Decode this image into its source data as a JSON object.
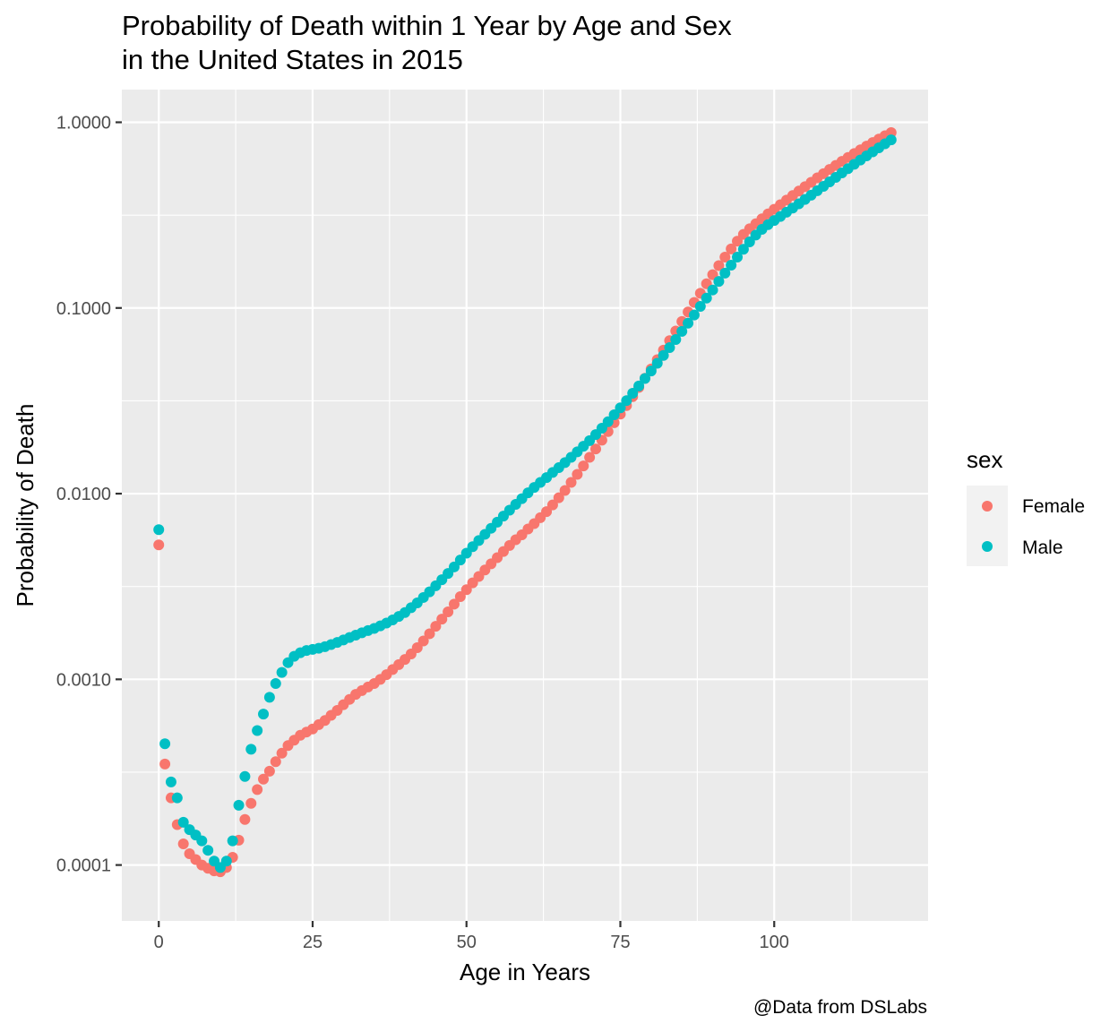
{
  "chart_data": {
    "type": "scatter",
    "title_lines": [
      "Probability of Death within 1 Year by Age and Sex",
      "in the United States in 2015"
    ],
    "xlabel": "Age in Years",
    "ylabel": "Probability of Death",
    "caption": "@Data from DSLabs",
    "x_scale": "linear",
    "y_scale": "log10",
    "xlim": [
      -6,
      125
    ],
    "ylim": [
      5e-05,
      1.5
    ],
    "x_ticks": [
      {
        "value": 0,
        "label": "0"
      },
      {
        "value": 25,
        "label": "25"
      },
      {
        "value": 50,
        "label": "50"
      },
      {
        "value": 75,
        "label": "75"
      },
      {
        "value": 100,
        "label": "100"
      }
    ],
    "y_ticks": [
      {
        "value": 0.0001,
        "label": "0.0001"
      },
      {
        "value": 0.001,
        "label": "0.0010"
      },
      {
        "value": 0.01,
        "label": "0.0100"
      },
      {
        "value": 0.1,
        "label": "0.1000"
      },
      {
        "value": 1,
        "label": "1.0000"
      }
    ],
    "legend": {
      "title": "sex",
      "placement": "right",
      "items": [
        {
          "label": "Female",
          "color": "#F8766D"
        },
        {
          "label": "Male",
          "color": "#00BFC4"
        }
      ]
    },
    "panel_background": "#EBEBEB",
    "grid_color": "#FFFFFF",
    "series": [
      {
        "name": "Female",
        "color": "#F8766D",
        "x": [
          0,
          1,
          2,
          3,
          4,
          5,
          6,
          7,
          8,
          9,
          10,
          11,
          12,
          13,
          14,
          15,
          16,
          17,
          18,
          19,
          20,
          21,
          22,
          23,
          24,
          25,
          26,
          27,
          28,
          29,
          30,
          31,
          32,
          33,
          34,
          35,
          36,
          37,
          38,
          39,
          40,
          41,
          42,
          43,
          44,
          45,
          46,
          47,
          48,
          49,
          50,
          51,
          52,
          53,
          54,
          55,
          56,
          57,
          58,
          59,
          60,
          61,
          62,
          63,
          64,
          65,
          66,
          67,
          68,
          69,
          70,
          71,
          72,
          73,
          74,
          75,
          76,
          77,
          78,
          79,
          80,
          81,
          82,
          83,
          84,
          85,
          86,
          87,
          88,
          89,
          90,
          91,
          92,
          93,
          94,
          95,
          96,
          97,
          98,
          99,
          100,
          101,
          102,
          103,
          104,
          105,
          106,
          107,
          108,
          109,
          110,
          111,
          112,
          113,
          114,
          115,
          116,
          117,
          118,
          119
        ],
        "y": [
          0.0053,
          0.00035,
          0.00023,
          0.000165,
          0.00013,
          0.000115,
          0.000107,
          0.0001,
          9.6e-05,
          9.3e-05,
          9.2e-05,
          9.7e-05,
          0.00011,
          0.000136,
          0.000176,
          0.000215,
          0.000255,
          0.00029,
          0.00032,
          0.00036,
          0.0004,
          0.00044,
          0.00047,
          0.0005,
          0.00052,
          0.00054,
          0.00057,
          0.0006,
          0.00064,
          0.00068,
          0.00073,
          0.00078,
          0.00083,
          0.00087,
          0.00091,
          0.00095,
          0.001,
          0.00106,
          0.00113,
          0.0012,
          0.00128,
          0.00137,
          0.00148,
          0.00161,
          0.00176,
          0.00193,
          0.00211,
          0.00231,
          0.00254,
          0.00279,
          0.00304,
          0.00331,
          0.00358,
          0.00388,
          0.00419,
          0.00452,
          0.00488,
          0.00526,
          0.00565,
          0.006,
          0.00645,
          0.0069,
          0.00742,
          0.008,
          0.0087,
          0.0095,
          0.0104,
          0.0115,
          0.0127,
          0.0141,
          0.0157,
          0.0174,
          0.0194,
          0.0216,
          0.0241,
          0.0268,
          0.0298,
          0.0333,
          0.0373,
          0.0418,
          0.0469,
          0.0527,
          0.0593,
          0.0667,
          0.0751,
          0.0846,
          0.0952,
          0.107,
          0.12,
          0.135,
          0.151,
          0.169,
          0.188,
          0.208,
          0.229,
          0.249,
          0.267,
          0.284,
          0.302,
          0.321,
          0.34,
          0.36,
          0.381,
          0.403,
          0.426,
          0.45,
          0.475,
          0.502,
          0.529,
          0.557,
          0.586,
          0.616,
          0.647,
          0.679,
          0.711,
          0.744,
          0.778,
          0.812,
          0.846,
          0.88
        ]
      },
      {
        "name": "Male",
        "color": "#00BFC4",
        "x": [
          0,
          1,
          2,
          3,
          4,
          5,
          6,
          7,
          8,
          9,
          10,
          11,
          12,
          13,
          14,
          15,
          16,
          17,
          18,
          19,
          20,
          21,
          22,
          23,
          24,
          25,
          26,
          27,
          28,
          29,
          30,
          31,
          32,
          33,
          34,
          35,
          36,
          37,
          38,
          39,
          40,
          41,
          42,
          43,
          44,
          45,
          46,
          47,
          48,
          49,
          50,
          51,
          52,
          53,
          54,
          55,
          56,
          57,
          58,
          59,
          60,
          61,
          62,
          63,
          64,
          65,
          66,
          67,
          68,
          69,
          70,
          71,
          72,
          73,
          74,
          75,
          76,
          77,
          78,
          79,
          80,
          81,
          82,
          83,
          84,
          85,
          86,
          87,
          88,
          89,
          90,
          91,
          92,
          93,
          94,
          95,
          96,
          97,
          98,
          99,
          100,
          101,
          102,
          103,
          104,
          105,
          106,
          107,
          108,
          109,
          110,
          111,
          112,
          113,
          114,
          115,
          116,
          117,
          118,
          119
        ],
        "y": [
          0.0064,
          0.00045,
          0.00028,
          0.00023,
          0.00017,
          0.000155,
          0.000145,
          0.000135,
          0.00012,
          0.000105,
          9.7e-05,
          0.000105,
          0.000135,
          0.00021,
          0.0003,
          0.00042,
          0.00053,
          0.00065,
          0.0008,
          0.00095,
          0.00109,
          0.00123,
          0.00133,
          0.00139,
          0.00143,
          0.00145,
          0.00147,
          0.0015,
          0.00154,
          0.00158,
          0.00163,
          0.00168,
          0.00173,
          0.00178,
          0.00183,
          0.00188,
          0.00194,
          0.00201,
          0.00209,
          0.00218,
          0.00229,
          0.00243,
          0.00258,
          0.00276,
          0.00296,
          0.00319,
          0.00344,
          0.00372,
          0.00403,
          0.00439,
          0.00478,
          0.00518,
          0.00559,
          0.00604,
          0.00651,
          0.00702,
          0.00757,
          0.00815,
          0.00876,
          0.0094,
          0.0101,
          0.0108,
          0.0115,
          0.0122,
          0.013,
          0.0138,
          0.0147,
          0.0157,
          0.0168,
          0.018,
          0.0193,
          0.0208,
          0.0225,
          0.0244,
          0.0266,
          0.029,
          0.0317,
          0.0347,
          0.038,
          0.0417,
          0.0458,
          0.0504,
          0.0555,
          0.0612,
          0.0676,
          0.0748,
          0.0828,
          0.0917,
          0.102,
          0.113,
          0.125,
          0.139,
          0.154,
          0.17,
          0.188,
          0.207,
          0.227,
          0.247,
          0.265,
          0.281,
          0.296,
          0.311,
          0.328,
          0.345,
          0.364,
          0.384,
          0.405,
          0.428,
          0.452,
          0.478,
          0.505,
          0.534,
          0.563,
          0.594,
          0.626,
          0.659,
          0.693,
          0.729,
          0.766,
          0.804
        ]
      }
    ]
  }
}
